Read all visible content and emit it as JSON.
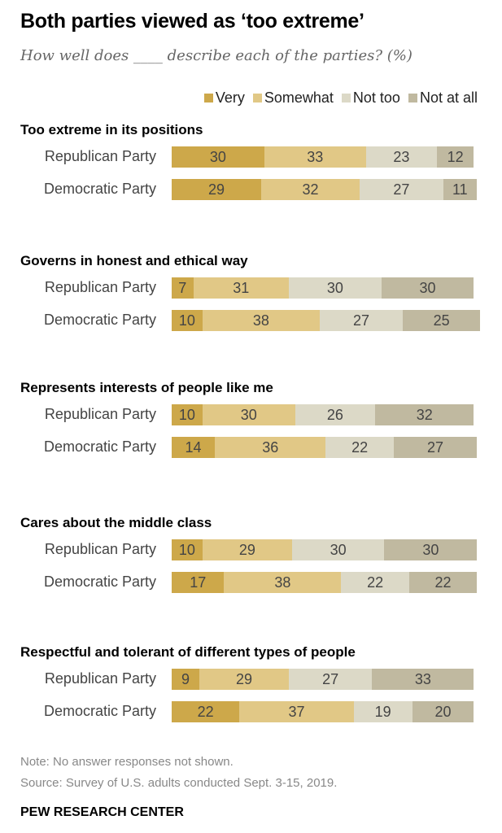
{
  "chart_data": {
    "type": "bar",
    "subtype": "stacked-horizontal",
    "title": "Both parties viewed as ‘too extreme’",
    "subtitle": "How well does ____ describe each of the parties? (%)",
    "legend_position": "top-right",
    "series_names": [
      "Very",
      "Somewhat",
      "Not too",
      "Not at all"
    ],
    "colors": [
      "#cda84a",
      "#e1c886",
      "#dcd9c7",
      "#c0b9a0"
    ],
    "groups": [
      {
        "title": "Too extreme in its positions",
        "rows": [
          {
            "label": "Republican Party",
            "values": [
              30,
              33,
              23,
              12
            ]
          },
          {
            "label": "Democratic Party",
            "values": [
              29,
              32,
              27,
              11
            ]
          }
        ]
      },
      {
        "title": "Governs in honest and ethical way",
        "rows": [
          {
            "label": "Republican Party",
            "values": [
              7,
              31,
              30,
              30
            ]
          },
          {
            "label": "Democratic Party",
            "values": [
              10,
              38,
              27,
              25
            ]
          }
        ]
      },
      {
        "title": "Represents interests of people like me",
        "rows": [
          {
            "label": "Republican Party",
            "values": [
              10,
              30,
              26,
              32
            ]
          },
          {
            "label": "Democratic Party",
            "values": [
              14,
              36,
              22,
              27
            ]
          }
        ]
      },
      {
        "title": "Cares about the middle class",
        "rows": [
          {
            "label": "Republican Party",
            "values": [
              10,
              29,
              30,
              30
            ]
          },
          {
            "label": "Democratic Party",
            "values": [
              17,
              38,
              22,
              22
            ]
          }
        ]
      },
      {
        "title": "Respectful and tolerant of different types of people",
        "rows": [
          {
            "label": "Republican Party",
            "values": [
              9,
              29,
              27,
              33
            ]
          },
          {
            "label": "Democratic Party",
            "values": [
              22,
              37,
              19,
              20
            ]
          }
        ]
      }
    ],
    "xlim": [
      0,
      100
    ]
  },
  "notes": {
    "note": "Note: No answer responses not shown.",
    "source": "Source: Survey of U.S. adults conducted Sept. 3-15, 2019.",
    "brand": "PEW RESEARCH CENTER"
  }
}
